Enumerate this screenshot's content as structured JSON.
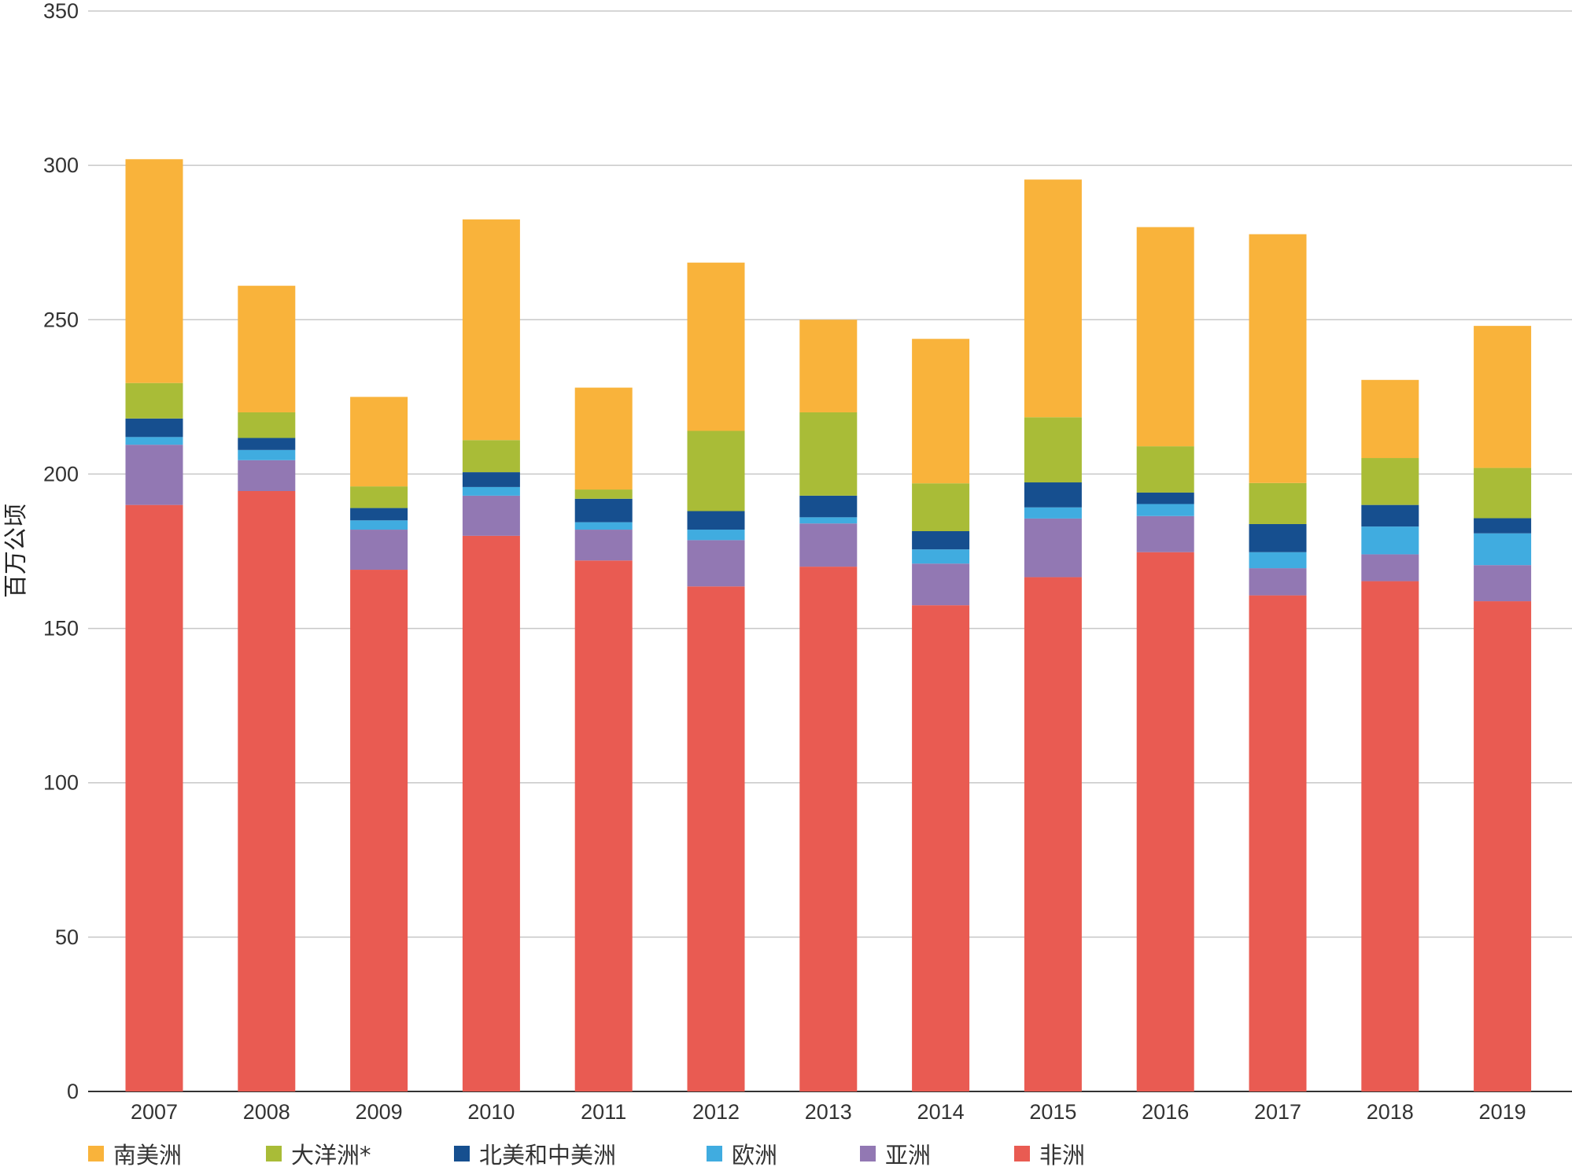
{
  "chart_data": {
    "type": "bar",
    "stacked": true,
    "title": "",
    "xlabel": "",
    "ylabel": "百万公顷",
    "ylim": [
      0,
      350
    ],
    "yticks": [
      0,
      50,
      100,
      150,
      200,
      250,
      300,
      350
    ],
    "grid": true,
    "legend_position": "bottom-left",
    "categories": [
      "2007",
      "2008",
      "2009",
      "2010",
      "2011",
      "2012",
      "2013",
      "2014",
      "2015",
      "2016",
      "2017",
      "2018",
      "2019"
    ],
    "series": [
      {
        "name": "非洲",
        "color": "#E95B52",
        "values": [
          190,
          194.5,
          169,
          180,
          172,
          163.6,
          170,
          157.5,
          166.6,
          174.7,
          160.7,
          165.3,
          158.8
        ]
      },
      {
        "name": "亚洲",
        "color": "#9278B3",
        "values": [
          19.5,
          10,
          13,
          13,
          10,
          15,
          14,
          13.5,
          19,
          11.7,
          8.8,
          8.7,
          11.7
        ]
      },
      {
        "name": "欧洲",
        "color": "#40ACE0",
        "values": [
          2.5,
          3.3,
          3,
          2.8,
          2.4,
          3.4,
          2,
          4.6,
          3.6,
          3.9,
          5.2,
          9,
          10.3
        ]
      },
      {
        "name": "北美和中美洲",
        "color": "#164F8F",
        "values": [
          6,
          3.9,
          4,
          4.8,
          7.6,
          6,
          7,
          5.9,
          8.1,
          3.7,
          9.1,
          7,
          4.9
        ]
      },
      {
        "name": "大洋洲*",
        "color": "#A9BC37",
        "values": [
          11.5,
          8.3,
          7,
          10.4,
          3,
          26,
          27,
          15.5,
          21.1,
          15,
          13.3,
          15.2,
          16.3
        ]
      },
      {
        "name": "南美洲",
        "color": "#F9B33B",
        "values": [
          72.5,
          41,
          29,
          71.5,
          33,
          54.5,
          30,
          46.8,
          77,
          71,
          80.6,
          25.3,
          46
        ]
      }
    ],
    "legend_order": [
      "南美洲",
      "大洋洲*",
      "北美和中美洲",
      "欧洲",
      "亚洲",
      "非洲"
    ]
  }
}
